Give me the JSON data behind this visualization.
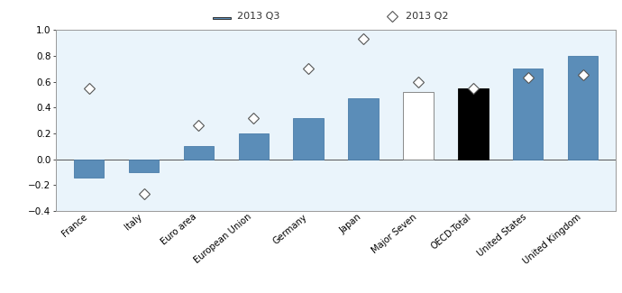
{
  "categories": [
    "France",
    "Italy",
    "Euro area",
    "European Union",
    "Germany",
    "Japan",
    "Major Seven",
    "OECD-Total",
    "United States",
    "United Kingdom"
  ],
  "q3_values": [
    -0.14,
    -0.1,
    0.1,
    0.2,
    0.32,
    0.47,
    0.52,
    0.55,
    0.7,
    0.8
  ],
  "q2_values": [
    0.55,
    -0.27,
    0.26,
    0.32,
    0.7,
    0.93,
    0.6,
    0.55,
    0.63,
    0.65
  ],
  "bar_colors": [
    "#5B8DB8",
    "#5B8DB8",
    "#5B8DB8",
    "#5B8DB8",
    "#5B8DB8",
    "#5B8DB8",
    "#FFFFFF",
    "#000000",
    "#5B8DB8",
    "#5B8DB8"
  ],
  "bar_edgecolors": [
    "#4a7ca8",
    "#4a7ca8",
    "#4a7ca8",
    "#4a7ca8",
    "#4a7ca8",
    "#4a7ca8",
    "#777777",
    "#000000",
    "#4a7ca8",
    "#4a7ca8"
  ],
  "legend_q3_label": "2013 Q3",
  "legend_q2_label": "2013 Q2",
  "legend_q3_color": "#5B8DB8",
  "ylim": [
    -0.4,
    1.0
  ],
  "yticks": [
    -0.4,
    -0.2,
    0.0,
    0.2,
    0.4,
    0.6,
    0.8,
    1.0
  ],
  "header_bg": "#DCDCDC",
  "plot_bg": "#EAF4FB",
  "fig_bg": "#FFFFFF"
}
